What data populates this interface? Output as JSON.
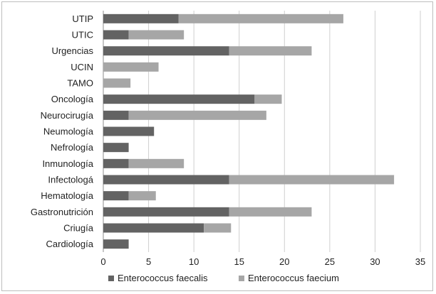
{
  "chart_data": {
    "type": "bar",
    "orientation": "horizontal",
    "stacked": true,
    "title": "",
    "xlabel": "",
    "ylabel": "",
    "xlim": [
      0,
      35
    ],
    "xticks": [
      "0",
      "5",
      "10",
      "15",
      "20",
      "25",
      "30",
      "35"
    ],
    "grid": "vertical",
    "legend_position": "bottom",
    "categories": [
      "UTIP",
      "UTIC",
      "Urgencias",
      "UCIN",
      "TAMO",
      "Oncología",
      "Neurocirugía",
      "Neumología",
      "Nefrología",
      "Inmunología",
      "Infectologá",
      "Hematología",
      "Gastronutrición",
      "Criugía",
      "Cardiología"
    ],
    "series": [
      {
        "name": "Enterococcus faecalis",
        "color": "#636363",
        "values": [
          8.3,
          2.8,
          13.9,
          0,
          0,
          16.7,
          2.8,
          5.6,
          2.8,
          2.8,
          13.9,
          2.8,
          13.9,
          11.1,
          2.8
        ]
      },
      {
        "name": "Enterococcus faecium",
        "color": "#a6a6a6",
        "values": [
          18.2,
          6.1,
          9.1,
          6.1,
          3.0,
          3.0,
          15.2,
          0,
          0,
          6.1,
          18.2,
          3.0,
          9.1,
          3.0,
          0
        ]
      }
    ]
  }
}
